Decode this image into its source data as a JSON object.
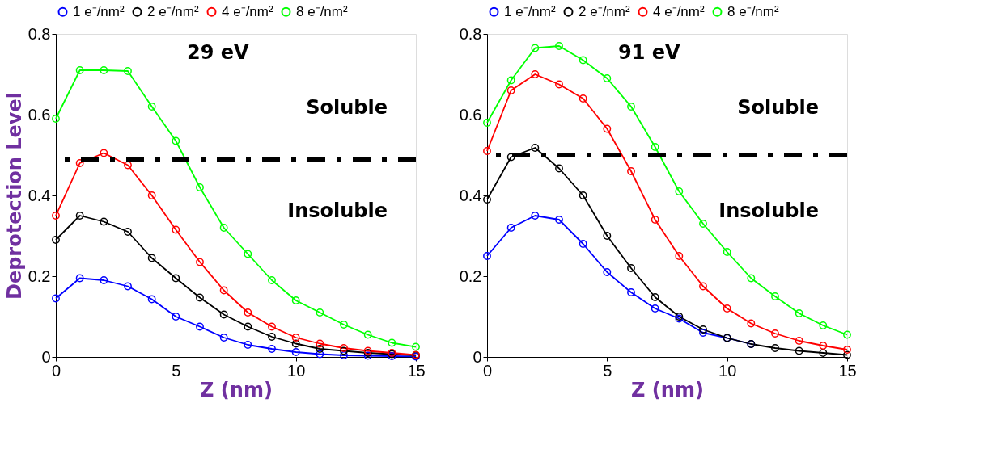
{
  "chart_data": [
    {
      "type": "line",
      "title": "29 eV",
      "xlabel": "Z (nm)",
      "ylabel": "Deprotection Level",
      "x": [
        0,
        1,
        2,
        3,
        4,
        5,
        6,
        7,
        8,
        9,
        10,
        11,
        12,
        13,
        14,
        15
      ],
      "xlim": [
        0,
        15
      ],
      "xticks": [
        0,
        5,
        10,
        15
      ],
      "ylim": [
        0,
        0.8
      ],
      "yticks": [
        0,
        0.2,
        0.4,
        0.6,
        0.8
      ],
      "marker": "circle",
      "legend": "top",
      "grid": false,
      "ref_lines": [
        {
          "axis": "y",
          "value": 0.49,
          "line_style": "dashed",
          "color": "#000000"
        }
      ],
      "annotations": [
        "Soluble",
        "Insoluble"
      ],
      "series": [
        {
          "name": "1 e⁻/nm²",
          "color": "#0000ff",
          "values": [
            0.145,
            0.195,
            0.19,
            0.175,
            0.143,
            0.1,
            0.075,
            0.048,
            0.03,
            0.02,
            0.012,
            0.007,
            0.004,
            0.003,
            0.002,
            0.001
          ]
        },
        {
          "name": "2 e⁻/nm²",
          "color": "#000000",
          "values": [
            0.29,
            0.35,
            0.335,
            0.31,
            0.245,
            0.195,
            0.147,
            0.105,
            0.075,
            0.05,
            0.033,
            0.02,
            0.015,
            0.01,
            0.007,
            0.004
          ]
        },
        {
          "name": "4 e⁻/nm²",
          "color": "#ff0000",
          "values": [
            0.35,
            0.48,
            0.505,
            0.475,
            0.4,
            0.315,
            0.235,
            0.165,
            0.11,
            0.075,
            0.048,
            0.033,
            0.022,
            0.015,
            0.01,
            0.005
          ]
        },
        {
          "name": "8 e⁻/nm²",
          "color": "#00ff00",
          "values": [
            0.59,
            0.71,
            0.71,
            0.708,
            0.62,
            0.535,
            0.42,
            0.32,
            0.255,
            0.19,
            0.14,
            0.11,
            0.08,
            0.055,
            0.035,
            0.025
          ]
        }
      ]
    },
    {
      "type": "line",
      "title": "91 eV",
      "xlabel": "Z (nm)",
      "x": [
        0,
        1,
        2,
        3,
        4,
        5,
        6,
        7,
        8,
        9,
        10,
        11,
        12,
        13,
        14,
        15
      ],
      "xlim": [
        0,
        15
      ],
      "xticks": [
        0,
        5,
        10,
        15
      ],
      "ylim": [
        0,
        0.8
      ],
      "yticks": [
        0,
        0.2,
        0.4,
        0.6,
        0.8
      ],
      "marker": "circle",
      "legend": "top",
      "grid": false,
      "ref_lines": [
        {
          "axis": "y",
          "value": 0.5,
          "line_style": "dashed",
          "color": "#000000"
        }
      ],
      "annotations": [
        "Soluble",
        "Insoluble"
      ],
      "series": [
        {
          "name": "1 e⁻/nm²",
          "color": "#0000ff",
          "values": [
            0.25,
            0.32,
            0.35,
            0.34,
            0.28,
            0.21,
            0.16,
            0.12,
            0.095,
            0.06,
            0.047,
            0.032,
            null,
            null,
            null,
            null
          ]
        },
        {
          "name": "2 e⁻/nm²",
          "color": "#000000",
          "values": [
            0.39,
            0.495,
            0.518,
            0.467,
            0.4,
            0.3,
            0.22,
            0.148,
            0.1,
            0.068,
            0.047,
            0.032,
            0.022,
            0.015,
            0.01,
            0.005
          ]
        },
        {
          "name": "4 e⁻/nm²",
          "color": "#ff0000",
          "values": [
            0.51,
            0.66,
            0.7,
            0.675,
            0.64,
            0.565,
            0.46,
            0.34,
            0.25,
            0.175,
            0.12,
            0.083,
            0.058,
            0.04,
            0.028,
            0.018
          ]
        },
        {
          "name": "8 e⁻/nm²",
          "color": "#00ff00",
          "values": [
            0.58,
            0.685,
            0.765,
            0.77,
            0.735,
            0.69,
            0.62,
            0.52,
            0.41,
            0.33,
            0.26,
            0.195,
            0.15,
            0.108,
            0.078,
            0.055
          ]
        }
      ]
    }
  ]
}
